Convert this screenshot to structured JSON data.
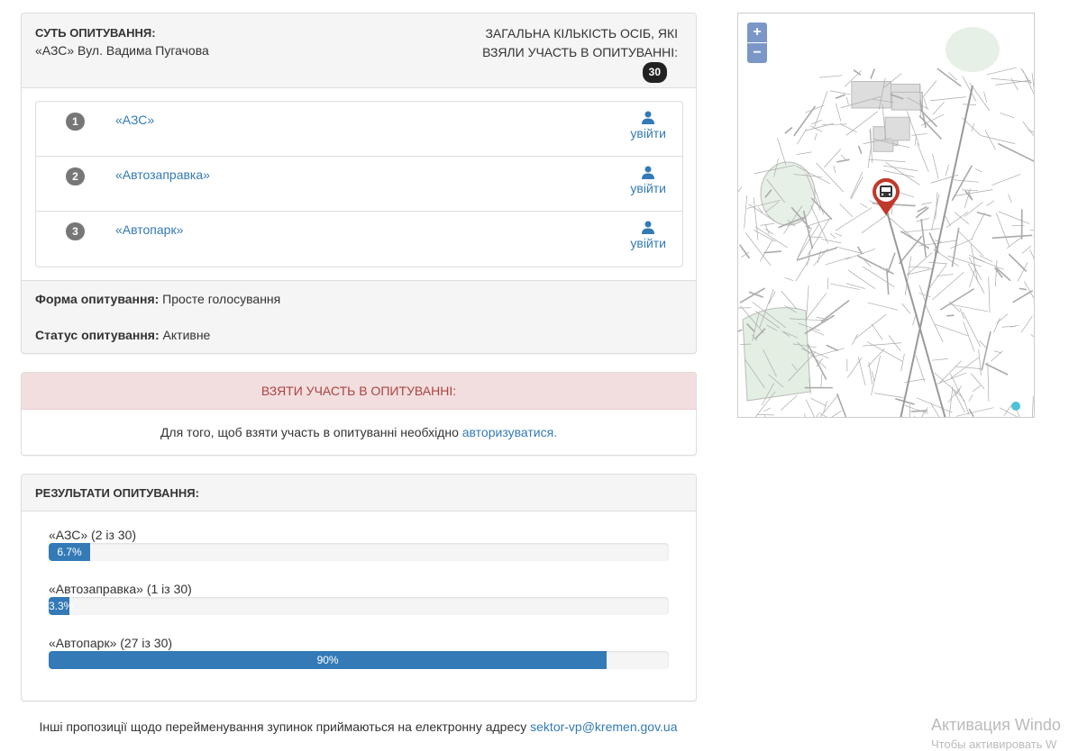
{
  "poll": {
    "essence_label": "СУТЬ ОПИТУВАННЯ:",
    "essence_value": "«АЗС» Вул. Вадима Пугачова",
    "total_label_line1": "ЗАГАЛЬНА КІЛЬКІСТЬ ОСІБ, ЯКІ",
    "total_label_line2": "ВЗЯЛИ УЧАСТЬ В ОПИТУВАННІ:",
    "total_count": "30",
    "options": [
      {
        "num": "1",
        "label": "«АЗС»",
        "login": "увійти"
      },
      {
        "num": "2",
        "label": "«Автозаправка»",
        "login": "увійти"
      },
      {
        "num": "3",
        "label": "«Автопарк»",
        "login": "увійти"
      }
    ],
    "form_label": "Форма опитування:",
    "form_value": "Просте голосування",
    "status_label": "Статус опитування:",
    "status_value": "Активне"
  },
  "participate": {
    "title": "ВЗЯТИ УЧАСТЬ В ОПИТУВАННІ:",
    "text": "Для того, щоб взяти участь в опитуванні необхідно ",
    "link": "авторизуватися."
  },
  "results": {
    "title": "РЕЗУЛЬТАТИ ОПИТУВАННЯ:",
    "items": [
      {
        "label": "«АЗС» (2 із 30)",
        "percent": 6.7,
        "percent_label": "6.7%"
      },
      {
        "label": "«Автозаправка» (1 із 30)",
        "percent": 3.3,
        "percent_label": "3.3%"
      },
      {
        "label": "«Автопарк» (27 із 30)",
        "percent": 90,
        "percent_label": "90%"
      }
    ]
  },
  "footer": {
    "text": "Інші пропозиції щодо перейменування зупинок приймаються на електронну адресу ",
    "email": "sektor-vp@kremen.gov.ua"
  },
  "map": {
    "zoom_in": "+",
    "zoom_out": "−",
    "marker_icon": "bus-icon",
    "marker_color": "#c0392b"
  },
  "watermark": {
    "line1": "Активация Windo",
    "line2": "Чтобы активировать W"
  },
  "colors": {
    "primary": "#337ab7",
    "danger_bg": "#f2dede",
    "danger_text": "#a94442"
  }
}
